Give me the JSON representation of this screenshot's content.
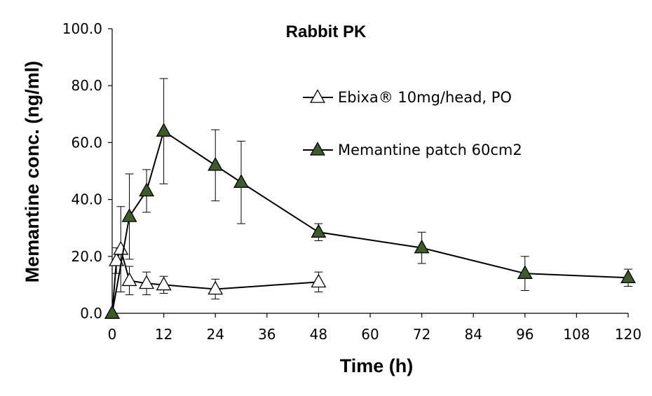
{
  "chart_data": {
    "type": "line",
    "title": "Rabbit PK",
    "xlabel": "Time (h)",
    "ylabel": "Memantine conc. (ng/ml)",
    "xlim": [
      0,
      120
    ],
    "ylim": [
      0,
      100
    ],
    "xticks": [
      0,
      12,
      24,
      36,
      48,
      60,
      72,
      84,
      96,
      108,
      120
    ],
    "yticks": [
      0,
      20,
      40,
      60,
      80,
      100
    ],
    "ytick_labels": [
      "0.0",
      "20.0",
      "40.0",
      "60.0",
      "80.0",
      "100.0"
    ],
    "grid": false,
    "legend_position": "upper-right",
    "series": [
      {
        "name": "Ebixa® 10mg/head, PO",
        "marker": "triangle-open",
        "color": "#000000",
        "fill": "#ffffff",
        "x": [
          0,
          1,
          2,
          4,
          8,
          12,
          24,
          48
        ],
        "y": [
          0,
          18.5,
          22.5,
          11.5,
          10.5,
          10,
          8.5,
          11
        ],
        "err": [
          0,
          4.5,
          15,
          5,
          4,
          3,
          3.5,
          3.5
        ]
      },
      {
        "name": "Memantine patch 60cm2",
        "marker": "triangle-filled",
        "color": "#000000",
        "fill": "#3e5c2a",
        "x": [
          0,
          4,
          8,
          12,
          24,
          30,
          48,
          72,
          96,
          120
        ],
        "y": [
          0,
          34,
          43,
          64,
          52,
          46,
          28.5,
          23,
          14,
          12.5
        ],
        "err": [
          0,
          15,
          7.5,
          18.5,
          12.5,
          14.5,
          3,
          5.5,
          6,
          3
        ]
      }
    ]
  }
}
